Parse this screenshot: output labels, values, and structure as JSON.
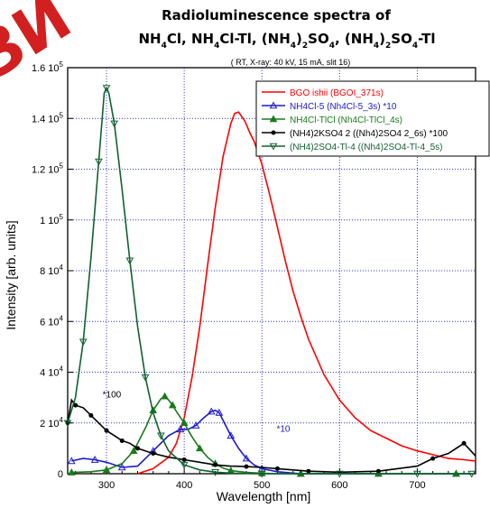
{
  "watermark": "ЗИ",
  "chart_data": {
    "type": "line",
    "title_line1": "Radioluminescence spectra of",
    "title_line2": [
      {
        "t": "NH",
        "s": false
      },
      {
        "t": "4",
        "s": true
      },
      {
        "t": "Cl, NH",
        "s": false
      },
      {
        "t": "4",
        "s": true
      },
      {
        "t": "Cl-Tl, (NH",
        "s": false
      },
      {
        "t": "4",
        "s": true
      },
      {
        "t": ")",
        "s": false
      },
      {
        "t": "2",
        "s": true
      },
      {
        "t": "SO",
        "s": false
      },
      {
        "t": "4",
        "s": true
      },
      {
        "t": ", (NH",
        "s": false
      },
      {
        "t": "4",
        "s": true
      },
      {
        "t": ")",
        "s": false
      },
      {
        "t": "2",
        "s": true
      },
      {
        "t": "SO",
        "s": false
      },
      {
        "t": "4",
        "s": true
      },
      {
        "t": "-Tl",
        "s": false
      }
    ],
    "subtitle": "( RT, X-ray: 40 kV, 15 mA, slit 16)",
    "xlabel": "Wavelength [nm]",
    "ylabel": "Intensity [arb. units]",
    "xlim": [
      250,
      775
    ],
    "ylim": [
      0,
      160000
    ],
    "grid": true,
    "legend_position": "top-right",
    "x_ticks": [
      300,
      400,
      500,
      600,
      700
    ],
    "x_tick_labels": [
      "300",
      "400",
      "500",
      "600",
      "700"
    ],
    "y_ticks": [
      {
        "value": 0,
        "base": "0",
        "exp": ""
      },
      {
        "value": 20000,
        "base": "2 10",
        "exp": "4"
      },
      {
        "value": 40000,
        "base": "4 10",
        "exp": "4"
      },
      {
        "value": 60000,
        "base": "6 10",
        "exp": "4"
      },
      {
        "value": 80000,
        "base": "8 10",
        "exp": "4"
      },
      {
        "value": 100000,
        "base": "1 10",
        "exp": "5"
      },
      {
        "value": 120000,
        "base": "1.2 10",
        "exp": "5"
      },
      {
        "value": 140000,
        "base": "1.4 10",
        "exp": "5"
      },
      {
        "value": 160000,
        "base": "1.6 10",
        "exp": "5"
      }
    ],
    "annotations": [
      {
        "text": "*100",
        "x": 260,
        "y": 30000,
        "color": "#000000"
      },
      {
        "text": "*10",
        "x": 484,
        "y": 16500,
        "color": "#1a1acc"
      }
    ],
    "series": [
      {
        "name": "BGO ishii (BGOI_371s)",
        "color": "#ff0000",
        "marker": "none",
        "x": [
          340,
          360,
          380,
          390,
          400,
          410,
          420,
          430,
          440,
          450,
          460,
          465,
          470,
          478,
          485,
          490,
          500,
          510,
          520,
          530,
          540,
          550,
          560,
          580,
          600,
          620,
          640,
          660,
          680,
          700,
          720,
          740,
          760,
          775
        ],
        "y": [
          0,
          2000,
          6500,
          12000,
          22000,
          38000,
          58000,
          82000,
          105000,
          125000,
          138000,
          142000,
          142500,
          139000,
          134000,
          131000,
          122000,
          110000,
          97000,
          84000,
          72000,
          62000,
          53000,
          39000,
          29000,
          22000,
          17000,
          14000,
          11000,
          9000,
          7500,
          6000,
          5500,
          5000
        ]
      },
      {
        "name": "NH4Cl-5  (Nh4Cl-5_3s) *10",
        "color": "#1a1acc",
        "marker": "triangle-open",
        "x": [
          255,
          270,
          285,
          300,
          320,
          340,
          360,
          380,
          395,
          405,
          415,
          425,
          435,
          440,
          445,
          450,
          460,
          470,
          480,
          490,
          500,
          520,
          550,
          600,
          650,
          700,
          750,
          770
        ],
        "y": [
          5000,
          6000,
          5500,
          4500,
          2500,
          3000,
          9000,
          15000,
          17500,
          17500,
          19000,
          22000,
          24500,
          25000,
          24000,
          21000,
          15000,
          10000,
          6000,
          3500,
          2000,
          800,
          0,
          0,
          0,
          0,
          0,
          0
        ]
      },
      {
        "name": "NH4Cl-TlCl (Nh4Cl-TlCl_4s)",
        "color": "#1a7a1a",
        "marker": "triangle-filled",
        "x": [
          255,
          280,
          300,
          320,
          335,
          350,
          360,
          370,
          375,
          380,
          385,
          390,
          400,
          410,
          420,
          430,
          440,
          450,
          460,
          480,
          500,
          520,
          550,
          600,
          650,
          700,
          750,
          770
        ],
        "y": [
          500,
          800,
          1500,
          4000,
          9000,
          18000,
          25000,
          29500,
          30500,
          29000,
          27000,
          24500,
          20000,
          14500,
          10000,
          6500,
          4000,
          2200,
          1200,
          500,
          200,
          0,
          0,
          0,
          0,
          0,
          0,
          0
        ]
      },
      {
        "name": "(NH4)2KSO4 2  ((Nh4)2SO4 2_6s) *100",
        "color": "#000000",
        "marker": "circle-filled",
        "x": [
          250,
          255,
          260,
          270,
          280,
          290,
          300,
          310,
          320,
          330,
          340,
          350,
          360,
          380,
          400,
          420,
          440,
          460,
          480,
          500,
          520,
          540,
          560,
          600,
          650,
          700,
          720,
          740,
          760,
          775
        ],
        "y": [
          20000,
          29000,
          27000,
          26000,
          23000,
          20000,
          17000,
          15000,
          13000,
          12000,
          10000,
          9000,
          8000,
          6500,
          5500,
          4500,
          3500,
          3000,
          2800,
          2500,
          2000,
          1500,
          1000,
          600,
          1000,
          3000,
          6000,
          8000,
          12000,
          7000
        ]
      },
      {
        "name": "(NH4)2SO4-Tl-4 ((Nh4)2SO4-Tl-4_5s)",
        "color": "#106030",
        "marker": "triangle-down-open",
        "x": [
          250,
          260,
          270,
          280,
          290,
          297,
          300,
          303,
          310,
          320,
          330,
          340,
          350,
          360,
          370,
          380,
          400,
          420,
          440,
          460,
          500,
          550,
          600,
          650,
          700,
          750,
          770
        ],
        "y": [
          20000,
          30000,
          52000,
          85000,
          123000,
          150000,
          152000,
          150000,
          138000,
          112000,
          84000,
          58000,
          38000,
          24000,
          15000,
          9000,
          3500,
          1500,
          600,
          200,
          0,
          0,
          0,
          0,
          0,
          0,
          0
        ]
      }
    ]
  }
}
